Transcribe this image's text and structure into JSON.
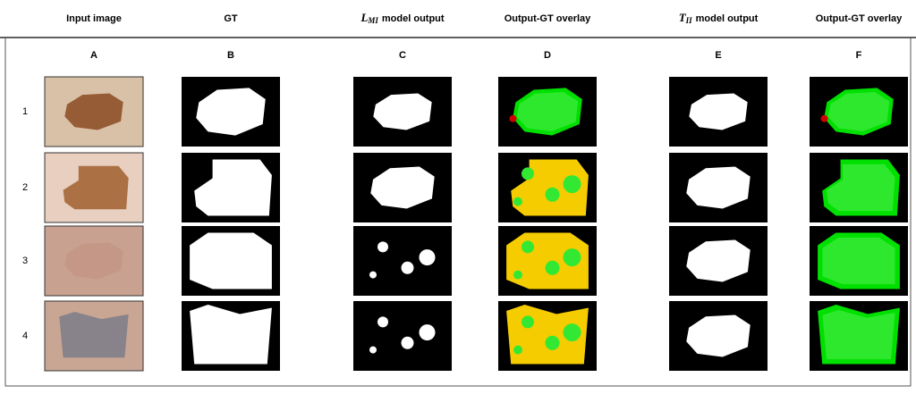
{
  "header": {
    "columns": [
      {
        "text": "Input image"
      },
      {
        "text": "GT"
      },
      {
        "symbol": "L",
        "subscript": "MI",
        "text": "model output"
      },
      {
        "text": "Output-GT overlay"
      },
      {
        "symbol": "T",
        "subscript": "II",
        "text": "model output"
      },
      {
        "text": "Output-GT overlay"
      }
    ]
  },
  "column_letters": [
    "A",
    "B",
    "C",
    "D",
    "E",
    "F"
  ],
  "row_numbers": [
    "1",
    "2",
    "3",
    "4"
  ]
}
